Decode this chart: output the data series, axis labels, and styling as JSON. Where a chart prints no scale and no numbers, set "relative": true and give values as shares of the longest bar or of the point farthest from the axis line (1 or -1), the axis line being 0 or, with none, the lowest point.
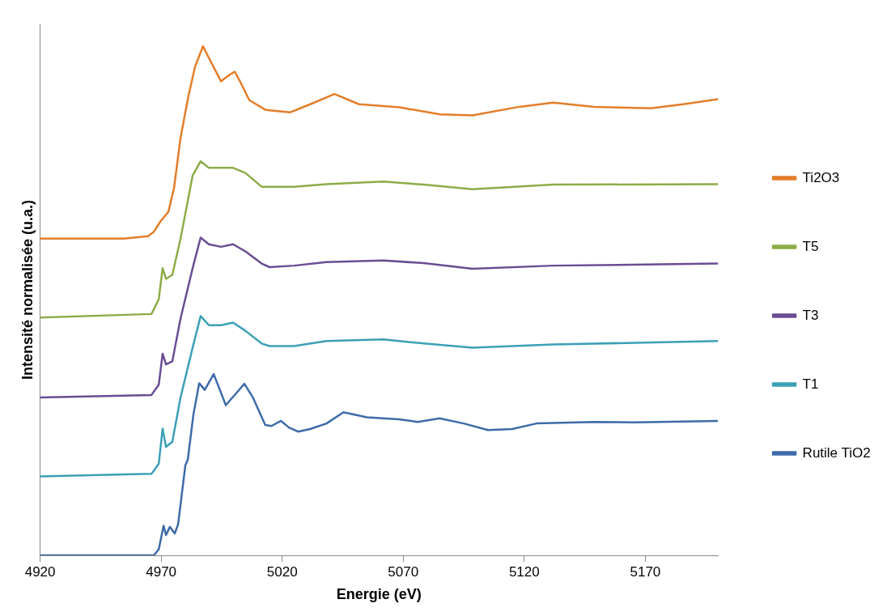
{
  "chart_data": {
    "type": "line",
    "relative": true,
    "xlabel": "Energie (eV)",
    "ylabel": "Intensité normalisée (u.a.)",
    "xlim": [
      4920,
      5200
    ],
    "xticks": [
      4920,
      4970,
      5020,
      5070,
      5120,
      5170
    ],
    "grid": false,
    "legend": "right",
    "marker": "none",
    "line_style": "solid",
    "series": [
      {
        "name": "Ti2O3",
        "color": "#e37e2a",
        "x": [
          4920,
          4954.5,
          4964.6,
          4966.9,
          4969.6,
          4973,
          4975.3,
          4978,
          4981.3,
          4984,
          4987.3,
          4989.7,
          4994.7,
          4997.4,
          5000.4,
          5003,
          5006.4,
          5013.1,
          5023.2,
          5031.6,
          5041.6,
          5051.7,
          5068.4,
          5085.2,
          5098.6,
          5118,
          5132,
          5148.8,
          5172.3,
          5185.7,
          5200
        ],
        "values": [
          0.622,
          0.622,
          0.627,
          0.635,
          0.655,
          0.675,
          0.721,
          0.82,
          0.903,
          0.96,
          1,
          0.977,
          0.931,
          0.941,
          0.95,
          0.927,
          0.894,
          0.875,
          0.87,
          0.886,
          0.906,
          0.886,
          0.88,
          0.866,
          0.864,
          0.881,
          0.889,
          0.881,
          0.878,
          0.886,
          0.896
        ]
      },
      {
        "name": "T5",
        "color": "#8cad47",
        "x": [
          4920,
          4966,
          4969,
          4970.6,
          4972,
          4974.6,
          4978,
          4983,
          4986.3,
          4989.7,
          4994.7,
          4999.7,
          5004.8,
          5011.5,
          5024.9,
          5038.3,
          5061.7,
          5078.5,
          5098.6,
          5132,
          5200
        ],
        "values": [
          0.467,
          0.474,
          0.503,
          0.564,
          0.543,
          0.551,
          0.622,
          0.746,
          0.774,
          0.761,
          0.761,
          0.761,
          0.751,
          0.724,
          0.724,
          0.729,
          0.734,
          0.728,
          0.719,
          0.728,
          0.729
        ]
      },
      {
        "name": "T3",
        "color": "#6a4c93",
        "x": [
          4920,
          4966,
          4969,
          4970.6,
          4972,
          4974.6,
          4978,
          4983,
          4986.3,
          4989.7,
          4994.7,
          4999.7,
          5004.8,
          5011.5,
          5014.8,
          5024.9,
          5038.3,
          5061.7,
          5078.5,
          5098.6,
          5132,
          5200
        ],
        "values": [
          0.31,
          0.315,
          0.335,
          0.396,
          0.375,
          0.381,
          0.465,
          0.564,
          0.624,
          0.611,
          0.606,
          0.611,
          0.597,
          0.573,
          0.566,
          0.569,
          0.576,
          0.579,
          0.574,
          0.563,
          0.569,
          0.573
        ]
      },
      {
        "name": "T1",
        "color": "#3ba0b6",
        "x": [
          4920,
          4966,
          4969,
          4970.6,
          4972,
          4974.6,
          4978,
          4983,
          4986.3,
          4989.7,
          4994.7,
          4999.7,
          5004.8,
          5011.5,
          5014.8,
          5024.9,
          5038.3,
          5061.7,
          5078.5,
          5098.6,
          5132,
          5200
        ],
        "values": [
          0.155,
          0.16,
          0.18,
          0.249,
          0.213,
          0.223,
          0.31,
          0.408,
          0.47,
          0.452,
          0.452,
          0.457,
          0.441,
          0.416,
          0.411,
          0.411,
          0.421,
          0.424,
          0.416,
          0.408,
          0.414,
          0.421
        ]
      },
      {
        "name": "Rutile TiO2",
        "color": "#3d6ba8",
        "x": [
          4920,
          4967,
          4969,
          4971,
          4972,
          4973.6,
          4975.6,
          4977,
          4980,
          4981,
          4983.3,
          4985.7,
          4988,
          4991.7,
          4996.7,
          5004.4,
          5008,
          5013,
          5015.5,
          5019.5,
          5022.8,
          5026.5,
          5031.5,
          5038.3,
          5045.3,
          5055,
          5068.4,
          5076,
          5085,
          5095,
          5105,
          5115,
          5125,
          5149,
          5165.6,
          5200
        ],
        "values": [
          0,
          0,
          0.012,
          0.058,
          0.04,
          0.056,
          0.043,
          0.061,
          0.177,
          0.188,
          0.276,
          0.338,
          0.325,
          0.356,
          0.295,
          0.337,
          0.309,
          0.256,
          0.254,
          0.264,
          0.251,
          0.243,
          0.248,
          0.259,
          0.281,
          0.271,
          0.267,
          0.262,
          0.269,
          0.259,
          0.246,
          0.248,
          0.259,
          0.262,
          0.261,
          0.264
        ]
      }
    ]
  }
}
